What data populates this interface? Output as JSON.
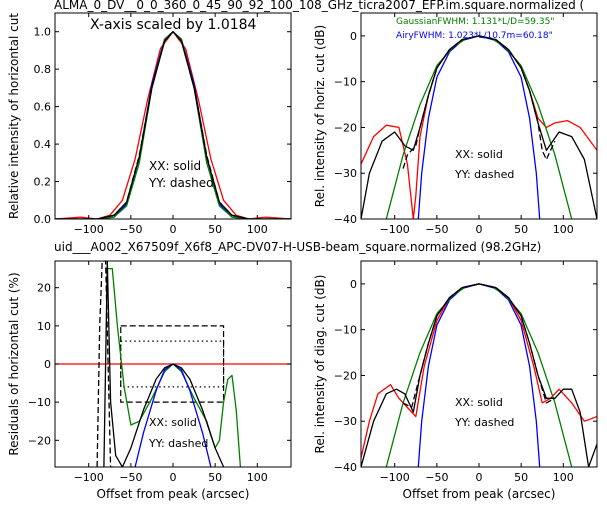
{
  "figure": {
    "top_title": "ALMA_0_DV__0_0_360_0_45_90_92_100_108_GHz_ticra2007_EFP.im.square.normalized (",
    "mid_title": "uid___A002_X67509f_X6f8_APC-DV07-H-USB-beam_square.normalized (98.2GHz)",
    "mid_title_color": "#ff0000"
  },
  "chart_data": [
    {
      "id": "tl",
      "type": "line",
      "xlabel": "",
      "ylabel": "Relative intensity of horizontal cut",
      "xlim": [
        -140,
        140
      ],
      "ylim": [
        0.0,
        1.1
      ],
      "xticks": [
        -100,
        -50,
        0,
        50,
        100
      ],
      "yticks": [
        0.0,
        0.2,
        0.4,
        0.6,
        0.8,
        1.0
      ],
      "ytick_labels": [
        "0.0",
        "0.2",
        "0.4",
        "0.6",
        "0.8",
        "1.0"
      ],
      "annotations": [
        "X-axis scaled by 1.0184",
        "XX: solid",
        "YY: dashed"
      ],
      "series": [
        {
          "color": "#ff0000",
          "style": "solid",
          "x": [
            -140,
            -110,
            -90,
            -75,
            -60,
            -45,
            -30,
            -15,
            0,
            15,
            30,
            45,
            60,
            75,
            90,
            110,
            140
          ],
          "y": [
            0.0,
            0.01,
            0.0,
            0.02,
            0.1,
            0.32,
            0.64,
            0.91,
            1.0,
            0.91,
            0.64,
            0.32,
            0.1,
            0.02,
            0.0,
            0.01,
            0.0
          ]
        },
        {
          "color": "#0000ff",
          "style": "solid",
          "x": [
            -140,
            -90,
            -70,
            -55,
            -40,
            -25,
            -10,
            0,
            10,
            25,
            40,
            55,
            70,
            90,
            140
          ],
          "y": [
            0.0,
            0.0,
            0.01,
            0.08,
            0.33,
            0.72,
            0.96,
            1.0,
            0.96,
            0.72,
            0.33,
            0.08,
            0.01,
            0.0,
            0.0
          ]
        },
        {
          "color": "#008000",
          "style": "solid",
          "x": [
            -140,
            -90,
            -70,
            -55,
            -40,
            -25,
            -10,
            0,
            10,
            25,
            40,
            55,
            70,
            90,
            140
          ],
          "y": [
            0.0,
            0.0,
            0.01,
            0.07,
            0.3,
            0.7,
            0.96,
            1.0,
            0.96,
            0.7,
            0.3,
            0.07,
            0.01,
            0.0,
            0.0
          ]
        },
        {
          "color": "#000000",
          "style": "solid",
          "x": [
            -140,
            -90,
            -70,
            -55,
            -40,
            -25,
            -10,
            0,
            10,
            25,
            40,
            55,
            70,
            90,
            140
          ],
          "y": [
            0.0,
            0.0,
            0.02,
            0.09,
            0.33,
            0.7,
            0.95,
            1.0,
            0.95,
            0.7,
            0.33,
            0.09,
            0.02,
            0.0,
            0.0
          ]
        },
        {
          "color": "#000000",
          "style": "dashed",
          "x": [
            -140,
            -90,
            -70,
            -55,
            -40,
            -25,
            -10,
            0,
            10,
            25,
            40,
            55,
            70,
            90,
            140
          ],
          "y": [
            0.0,
            0.0,
            0.02,
            0.09,
            0.34,
            0.71,
            0.95,
            1.0,
            0.95,
            0.71,
            0.34,
            0.09,
            0.02,
            0.0,
            0.0
          ]
        }
      ]
    },
    {
      "id": "tr",
      "type": "line",
      "xlabel": "",
      "ylabel": "Rel. intensity of horiz. cut (dB)",
      "xlim": [
        -140,
        140
      ],
      "ylim": [
        -40,
        5
      ],
      "xticks": [
        -100,
        -50,
        0,
        50,
        100
      ],
      "yticks": [
        -40,
        -30,
        -20,
        -10,
        0
      ],
      "ytick_labels": [
        "−40",
        "−30",
        "−20",
        "−10",
        "0"
      ],
      "annotations": [
        "GaussianFWHM: 1.131*L/D=59.35\"",
        "AiryFWHM: 1.023*L/10.7m=60.18\"",
        "XX: solid",
        "YY: dashed"
      ],
      "annotation_colors": [
        "#008000",
        "#0000ff",
        "#000000",
        "#000000"
      ],
      "series": [
        {
          "color": "#ff0000",
          "style": "solid",
          "x": [
            -140,
            -125,
            -110,
            -95,
            -85,
            -78,
            -75,
            -70,
            -60,
            -50,
            -35,
            -20,
            0,
            20,
            35,
            50,
            60,
            70,
            80,
            90,
            105,
            120,
            140
          ],
          "y": [
            -28,
            -22,
            -19.5,
            -20,
            -28,
            -40,
            -35,
            -22,
            -13,
            -7,
            -3,
            -0.8,
            0,
            -0.8,
            -3,
            -7,
            -12,
            -18,
            -20,
            -19,
            -18.5,
            -20,
            -25
          ]
        },
        {
          "color": "#0000ff",
          "style": "solid",
          "x": [
            -72,
            -68,
            -60,
            -50,
            -35,
            -20,
            0,
            20,
            35,
            50,
            60,
            68,
            72
          ],
          "y": [
            -40,
            -30,
            -18,
            -9,
            -3.5,
            -1,
            0,
            -1,
            -3.5,
            -9,
            -18,
            -30,
            -40
          ]
        },
        {
          "color": "#008000",
          "style": "solid",
          "x": [
            -110,
            -90,
            -70,
            -50,
            -30,
            -15,
            0,
            15,
            30,
            50,
            70,
            90,
            110
          ],
          "y": [
            -40,
            -26,
            -15,
            -6.5,
            -2.3,
            -0.6,
            0,
            -0.6,
            -2.3,
            -6.5,
            -15,
            -26,
            -40
          ]
        },
        {
          "color": "#000000",
          "style": "solid",
          "x": [
            -140,
            -130,
            -115,
            -100,
            -88,
            -78,
            -70,
            -60,
            -50,
            -35,
            -20,
            0,
            20,
            35,
            50,
            60,
            70,
            80,
            95,
            110,
            125,
            140
          ],
          "y": [
            -40,
            -30,
            -23,
            -21,
            -24,
            -25,
            -20,
            -13,
            -7,
            -3,
            -0.8,
            0,
            -0.8,
            -3,
            -7,
            -12,
            -19,
            -25,
            -21,
            -22,
            -27,
            -40
          ]
        },
        {
          "color": "#000000",
          "style": "dashed",
          "x": [
            -90,
            -85,
            -80,
            -75,
            -70,
            -60,
            -50,
            -35,
            -20,
            0,
            20,
            35,
            50,
            60,
            70,
            75,
            80,
            85,
            90
          ],
          "y": [
            -29,
            -26,
            -25,
            -24,
            -20,
            -13,
            -7,
            -3,
            -0.8,
            0,
            -0.8,
            -3,
            -7,
            -12,
            -19,
            -25,
            -27,
            -25,
            -23
          ]
        }
      ]
    },
    {
      "id": "bl",
      "type": "line",
      "xlabel": "Offset from peak (arcsec)",
      "ylabel": "Residuals of horizontal cut (%)",
      "xlim": [
        -140,
        140
      ],
      "ylim": [
        -27,
        27
      ],
      "xticks": [
        -100,
        -50,
        0,
        50,
        100
      ],
      "yticks": [
        -20,
        -10,
        0,
        10,
        20
      ],
      "ytick_labels": [
        "−20",
        "−10",
        "0",
        "10",
        "20"
      ],
      "annotations": [
        "XX: solid",
        "YY: dashed"
      ],
      "series": [
        {
          "color": "#ff0000",
          "style": "solid",
          "x": [
            -140,
            140
          ],
          "y": [
            0,
            0
          ]
        },
        {
          "color": "#008000",
          "style": "solid",
          "x": [
            -78,
            -72,
            -66,
            -58,
            -50,
            -40,
            -25,
            -10,
            0,
            10,
            25,
            40,
            50,
            55,
            60,
            65,
            70,
            75,
            80
          ],
          "y": [
            25,
            25,
            10,
            -6,
            -16,
            -15,
            -9,
            -2,
            0,
            -2,
            -9,
            -15,
            -22,
            -20,
            -10,
            -4,
            -3,
            -12,
            -27
          ]
        },
        {
          "color": "#0000ff",
          "style": "solid",
          "x": [
            -45,
            -35,
            -20,
            -10,
            0,
            10,
            20,
            35,
            45
          ],
          "y": [
            -27,
            -18,
            -7,
            -1.5,
            0,
            -1.5,
            -7,
            -18,
            -27
          ]
        },
        {
          "color": "#000000",
          "style": "solid",
          "x": [
            -82,
            -78,
            -74,
            -68,
            -60,
            -50,
            -35,
            -20,
            -10,
            0,
            10,
            20,
            35,
            50,
            60
          ],
          "y": [
            -27,
            27,
            -10,
            -24,
            -27,
            -22,
            -12,
            -4,
            -1,
            0,
            -1,
            -4,
            -12,
            -22,
            -27
          ]
        },
        {
          "color": "#000000",
          "style": "dashed",
          "x": [
            -90,
            -87,
            -84,
            -80,
            -77,
            -74,
            -70
          ],
          "y": [
            -27,
            10,
            27,
            27,
            0,
            -27,
            -27
          ]
        }
      ],
      "boxes": [
        {
          "style": "dashed",
          "x0": -62,
          "x1": 60,
          "y0": -10,
          "y1": 10
        },
        {
          "style": "dotted",
          "x0": -62,
          "x1": 60,
          "y0": -6,
          "y1": 6
        }
      ]
    },
    {
      "id": "br",
      "type": "line",
      "xlabel": "Offset from peak (arcsec)",
      "ylabel": "Rel. intensity of diag. cut (dB)",
      "xlim": [
        -140,
        140
      ],
      "ylim": [
        -40,
        5
      ],
      "xticks": [
        -100,
        -50,
        0,
        50,
        100
      ],
      "yticks": [
        -40,
        -30,
        -20,
        -10,
        0
      ],
      "ytick_labels": [
        "−40",
        "−30",
        "−20",
        "−10",
        "0"
      ],
      "annotations": [
        "XX: solid",
        "YY: dashed"
      ],
      "series": [
        {
          "color": "#ff0000",
          "style": "solid",
          "x": [
            -140,
            -130,
            -120,
            -105,
            -95,
            -85,
            -75,
            -65,
            -50,
            -35,
            -20,
            0,
            20,
            35,
            50,
            65,
            75,
            85,
            95,
            110,
            125,
            140
          ],
          "y": [
            -38,
            -30,
            -24,
            -22,
            -25,
            -27,
            -29,
            -18,
            -8,
            -3,
            -0.8,
            0,
            -0.8,
            -3,
            -8,
            -18,
            -26,
            -25,
            -23,
            -26,
            -30,
            -29
          ]
        },
        {
          "color": "#0000ff",
          "style": "solid",
          "x": [
            -72,
            -68,
            -60,
            -50,
            -35,
            -20,
            0,
            20,
            35,
            50,
            60,
            68,
            72
          ],
          "y": [
            -40,
            -30,
            -18,
            -9,
            -3.5,
            -1,
            0,
            -1,
            -3.5,
            -9,
            -18,
            -30,
            -40
          ]
        },
        {
          "color": "#008000",
          "style": "solid",
          "x": [
            -110,
            -90,
            -70,
            -50,
            -30,
            -15,
            0,
            15,
            30,
            50,
            70,
            90,
            110
          ],
          "y": [
            -40,
            -26,
            -15,
            -6.5,
            -2.3,
            -0.6,
            0,
            -0.6,
            -2.3,
            -6.5,
            -15,
            -26,
            -40
          ]
        },
        {
          "color": "#000000",
          "style": "solid",
          "x": [
            -140,
            -125,
            -110,
            -98,
            -88,
            -78,
            -70,
            -60,
            -50,
            -35,
            -20,
            0,
            20,
            35,
            50,
            60,
            70,
            80,
            90,
            100,
            110,
            120,
            130,
            140
          ],
          "y": [
            -40,
            -30,
            -24,
            -23,
            -24,
            -28,
            -20,
            -13,
            -7,
            -3,
            -0.8,
            0,
            -0.8,
            -3,
            -7,
            -13,
            -20,
            -25,
            -25,
            -23,
            -23,
            -28,
            -40,
            -35
          ]
        },
        {
          "color": "#000000",
          "style": "dashed",
          "x": [
            -90,
            -80,
            -70,
            -60,
            -50,
            -35,
            -20,
            0,
            20,
            35,
            50,
            60,
            70,
            80,
            90
          ],
          "y": [
            -26,
            -27,
            -20,
            -13,
            -7,
            -3,
            -0.8,
            0,
            -0.8,
            -3,
            -7,
            -13,
            -20,
            -26,
            -25
          ]
        }
      ]
    }
  ]
}
